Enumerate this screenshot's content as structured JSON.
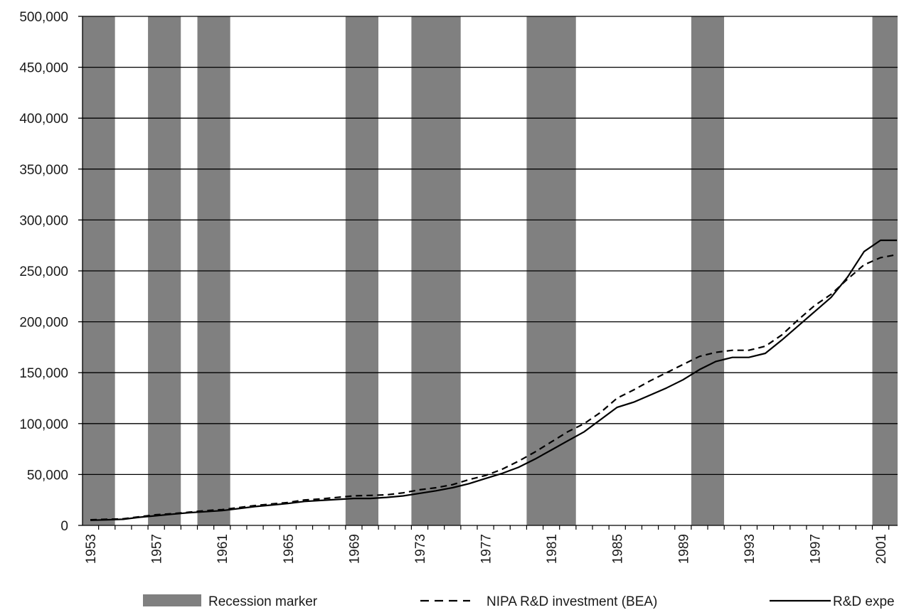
{
  "chart_data": {
    "type": "line",
    "title": "",
    "xlabel": "",
    "ylabel": "",
    "ylim": [
      0,
      500000
    ],
    "xlim": [
      1953,
      2002
    ],
    "grid": "horizontal",
    "legend_position": "bottom",
    "y_ticks": [
      "0",
      "50,000",
      "100,000",
      "150,000",
      "200,000",
      "250,000",
      "300,000",
      "350,000",
      "400,000",
      "450,000",
      "500,000"
    ],
    "y_tick_values": [
      0,
      50000,
      100000,
      150000,
      200000,
      250000,
      300000,
      350000,
      400000,
      450000,
      500000
    ],
    "x_ticks": [
      "1953",
      "1957",
      "1961",
      "1965",
      "1969",
      "1973",
      "1977",
      "1981",
      "1985",
      "1989",
      "1993",
      "1997",
      "2001"
    ],
    "x_tick_values": [
      1953,
      1957,
      1961,
      1965,
      1969,
      1973,
      1977,
      1981,
      1985,
      1989,
      1993,
      1997,
      2001
    ],
    "recessions": [
      {
        "start": 1953,
        "end": 1954
      },
      {
        "start": 1957,
        "end": 1958
      },
      {
        "start": 1960,
        "end": 1961
      },
      {
        "start": 1969,
        "end": 1970
      },
      {
        "start": 1973,
        "end": 1975
      },
      {
        "start": 1980,
        "end": 1982
      },
      {
        "start": 1990,
        "end": 1991
      },
      {
        "start": 2001,
        "end": 2001.9
      }
    ],
    "x": [
      1953,
      1954,
      1955,
      1956,
      1957,
      1958,
      1959,
      1960,
      1961,
      1962,
      1963,
      1964,
      1965,
      1966,
      1967,
      1968,
      1969,
      1970,
      1971,
      1972,
      1973,
      1974,
      1975,
      1976,
      1977,
      1978,
      1979,
      1980,
      1981,
      1982,
      1983,
      1984,
      1985,
      1986,
      1987,
      1988,
      1989,
      1990,
      1991,
      1992,
      1993,
      1994,
      1995,
      1996,
      1997,
      1998,
      1999,
      2000,
      2001,
      2002
    ],
    "series": [
      {
        "name": "NIPA R&D investment (BEA)",
        "style": "dashed",
        "color": "#000000",
        "values": [
          5500,
          6000,
          6500,
          8500,
          10500,
          11500,
          13000,
          14500,
          15500,
          17500,
          19500,
          21000,
          22500,
          25000,
          26000,
          27500,
          29000,
          29500,
          30000,
          32000,
          35000,
          37000,
          40000,
          45000,
          49000,
          55000,
          63000,
          72000,
          82000,
          92000,
          100000,
          111000,
          125000,
          133000,
          142000,
          150000,
          158000,
          166000,
          170000,
          172000,
          172000,
          176000,
          187000,
          202000,
          216000,
          227000,
          242000,
          256000,
          263000,
          266000
        ]
      },
      {
        "name": "R&D expe",
        "style": "solid",
        "color": "#000000",
        "values": [
          5000,
          5500,
          6000,
          8000,
          9500,
          11000,
          12500,
          13500,
          14500,
          16500,
          18500,
          20000,
          21500,
          23500,
          24500,
          25500,
          26500,
          26500,
          27500,
          29000,
          31500,
          34000,
          37000,
          41000,
          46000,
          51000,
          57000,
          65000,
          74000,
          83000,
          92000,
          104000,
          116000,
          121000,
          128000,
          135000,
          143000,
          153000,
          161000,
          165000,
          165000,
          169000,
          182000,
          196000,
          210000,
          224000,
          244000,
          269000,
          280000,
          280000
        ]
      }
    ],
    "legend": [
      {
        "label": "Recession marker",
        "kind": "bar",
        "color": "#808080"
      },
      {
        "label": "NIPA R&D investment (BEA)",
        "kind": "dashed"
      },
      {
        "label": "R&D expe",
        "kind": "solid"
      }
    ]
  }
}
